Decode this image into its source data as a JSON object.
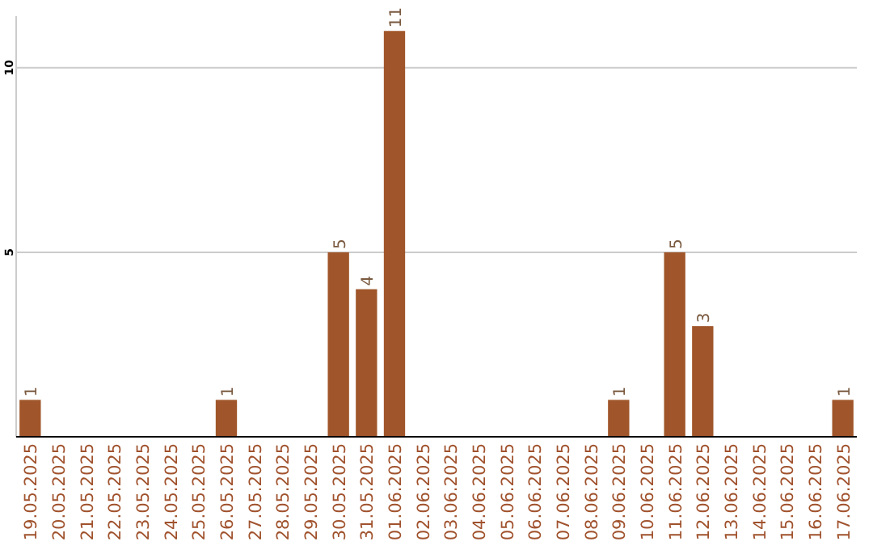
{
  "chart_data": {
    "type": "bar",
    "categories": [
      "19.05.2025",
      "20.05.2025",
      "21.05.2025",
      "22.05.2025",
      "23.05.2025",
      "24.05.2025",
      "25.05.2025",
      "26.05.2025",
      "27.05.2025",
      "28.05.2025",
      "29.05.2025",
      "30.05.2025",
      "31.05.2025",
      "01.06.2025",
      "02.06.2025",
      "03.06.2025",
      "04.06.2025",
      "05.06.2025",
      "06.06.2025",
      "07.06.2025",
      "08.06.2025",
      "09.06.2025",
      "10.06.2025",
      "11.06.2025",
      "12.06.2025",
      "13.06.2025",
      "14.06.2025",
      "15.06.2025",
      "16.06.2025",
      "17.06.2025"
    ],
    "values": [
      1,
      0,
      0,
      0,
      0,
      0,
      0,
      1,
      0,
      0,
      0,
      5,
      4,
      11,
      0,
      0,
      0,
      0,
      0,
      0,
      0,
      1,
      0,
      5,
      3,
      0,
      0,
      0,
      0,
      1
    ],
    "value_labels": [
      "1",
      null,
      null,
      null,
      null,
      null,
      null,
      "1",
      null,
      null,
      null,
      "5",
      "4",
      "11",
      null,
      null,
      null,
      null,
      null,
      null,
      null,
      "1",
      null,
      "5",
      "3",
      null,
      null,
      null,
      null,
      "1"
    ],
    "color": "#a0562a",
    "ylim": [
      0,
      11.4
    ],
    "yticks": [
      5,
      10
    ],
    "grid": "y"
  }
}
